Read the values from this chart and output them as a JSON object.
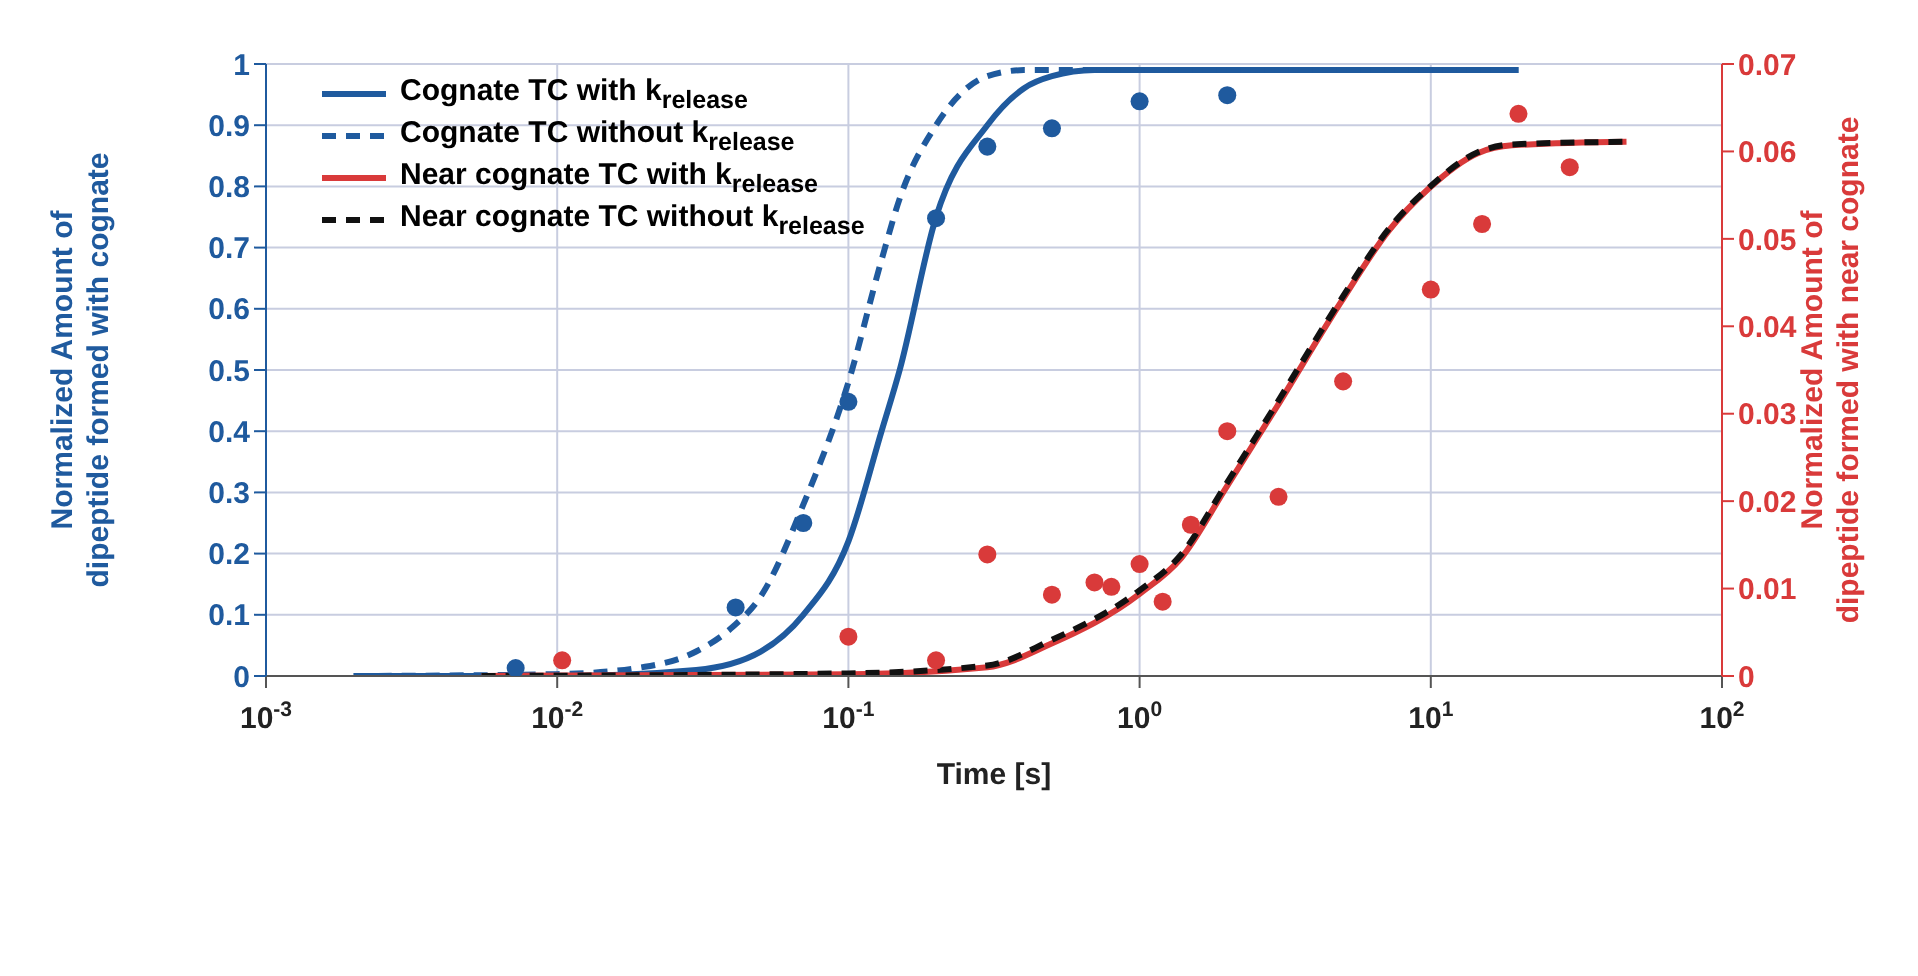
{
  "chart_data": {
    "type": "line",
    "xlabel": "Time [s]",
    "ylabel": "Normalized Amount of dipeptide formed with cognate",
    "y2label": "Normalized Amount of dipeptide formed with near cognate",
    "log": "x",
    "grid": true,
    "legend": "top left",
    "xlim": [
      0.001,
      100
    ],
    "xticks": [
      {
        "value": 0.001,
        "label": "10$^{-3}$"
      },
      {
        "value": 0.01,
        "label": "10$^{-2}$"
      },
      {
        "value": 0.1,
        "label": "10$^{-1}$"
      },
      {
        "value": 1,
        "label": "10$^{0}$"
      },
      {
        "value": 10,
        "label": "10$^{1}$"
      },
      {
        "value": 100,
        "label": "10$^{2}$"
      }
    ],
    "ylim": [
      0,
      1
    ],
    "yticks": [
      0,
      0.1,
      0.2,
      0.3,
      0.4,
      0.5,
      0.6,
      0.7,
      0.8,
      0.9,
      1
    ],
    "y2lim": [
      0,
      0.07
    ],
    "y2ticks": [
      0,
      0.01,
      0.02,
      0.03,
      0.04,
      0.05,
      0.06,
      0.07
    ],
    "series": [
      {
        "name": "Cognate TC with k$_{release}$",
        "line_style": "solid",
        "color": "#1f5a9e",
        "x": [
          0.002,
          0.01,
          0.03,
          0.05,
          0.07,
          0.1,
          0.13,
          0.15,
          0.2,
          0.3,
          0.4,
          0.5,
          0.7,
          1,
          20
        ],
        "values": [
          0,
          0,
          0.01,
          0.04,
          0.1,
          0.22,
          0.4,
          0.5,
          0.75,
          0.9,
          0.96,
          0.98,
          0.99,
          0.99,
          0.99
        ]
      },
      {
        "name": "Cognate TC without k$_{release}$",
        "line_style": "dashed",
        "color": "#1f5a9e",
        "x": [
          0.002,
          0.01,
          0.02,
          0.03,
          0.04,
          0.05,
          0.07,
          0.1,
          0.13,
          0.15,
          0.2,
          0.3,
          0.4,
          1,
          20
        ],
        "values": [
          0,
          0.003,
          0.015,
          0.04,
          0.08,
          0.13,
          0.28,
          0.48,
          0.68,
          0.78,
          0.9,
          0.98,
          0.99,
          0.99,
          0.99
        ]
      },
      {
        "name": "Near cognate TC with k$_{release}$",
        "line_style": "solid",
        "color": "#d93a3a",
        "axis": "y2",
        "x": [
          0.0055,
          0.1,
          0.3,
          0.49,
          1,
          1.39,
          1.97,
          2.96,
          4.9,
          7.2,
          9.8,
          14.5,
          19,
          47
        ],
        "values": [
          0,
          0.0002,
          0.001,
          0.0036,
          0.0094,
          0.0135,
          0.0214,
          0.0308,
          0.0427,
          0.051,
          0.0557,
          0.0598,
          0.0607,
          0.0611
        ]
      },
      {
        "name": "Near cognate TC without k$_{release}$",
        "line_style": "dashed",
        "color": "#111111",
        "axis": "y2",
        "x": [
          0.0055,
          0.1,
          0.3,
          0.49,
          1,
          1.39,
          1.97,
          2.96,
          4.9,
          7.2,
          9.8,
          14.5,
          19,
          47
        ],
        "values": [
          0,
          0.0003,
          0.0012,
          0.004,
          0.0098,
          0.0139,
          0.0218,
          0.0312,
          0.043,
          0.0512,
          0.0558,
          0.0599,
          0.0608,
          0.0611
        ]
      },
      {
        "type": "scatter",
        "marker": "circle",
        "color": "#1f5a9e",
        "x": [
          0.0072,
          0.041,
          0.07,
          0.1,
          0.2,
          0.3,
          0.5,
          1,
          2
        ],
        "values": [
          0.013,
          0.112,
          0.25,
          0.448,
          0.748,
          0.865,
          0.895,
          0.939,
          0.949
        ]
      },
      {
        "type": "scatter",
        "marker": "circle",
        "color": "#d93a3a",
        "axis": "y2",
        "x": [
          0.0104,
          0.1,
          0.2,
          0.3,
          0.5,
          0.7,
          0.8,
          1,
          1.2,
          1.5,
          2,
          3,
          5,
          10,
          15,
          20,
          30
        ],
        "values": [
          0.0018,
          0.0045,
          0.0018,
          0.0139,
          0.0093,
          0.0107,
          0.0102,
          0.0128,
          0.0085,
          0.0173,
          0.028,
          0.0205,
          0.0337,
          0.0442,
          0.0517,
          0.0643,
          0.0582
        ]
      }
    ]
  }
}
